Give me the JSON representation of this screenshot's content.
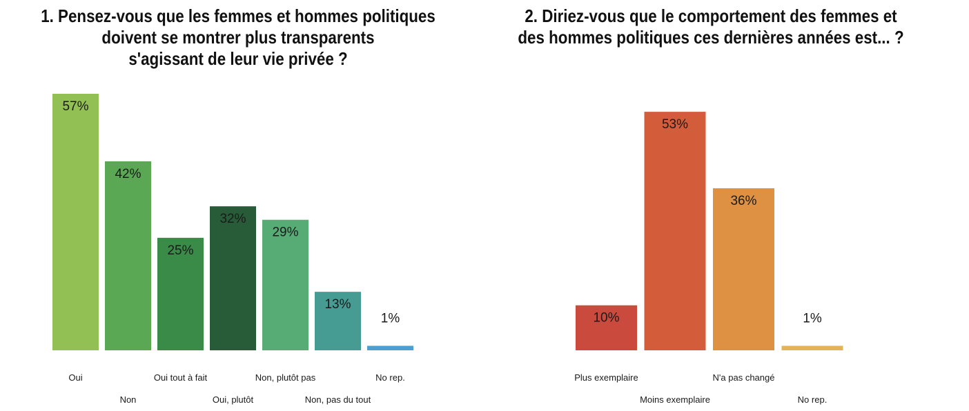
{
  "chart_data": [
    {
      "type": "bar",
      "title": "1. Pensez-vous que les femmes et hommes politiques\ndoivent se montrer plus transparents\ns'agissant de leur vie privée ?",
      "categories": [
        "Oui",
        "Non",
        "Oui tout à fait",
        "Oui, plutôt",
        "Non, plutôt pas",
        "Non, pas du tout",
        "No rep."
      ],
      "values": [
        57,
        42,
        25,
        32,
        29,
        13,
        1
      ],
      "data_labels": [
        "57%",
        "42%",
        "25%",
        "32%",
        "29%",
        "13%",
        "1%"
      ],
      "colors": [
        "#93c055",
        "#5ba854",
        "#3a8a48",
        "#285c38",
        "#57ab75",
        "#469b93",
        "#4c9fd0"
      ],
      "ylim": [
        0,
        57
      ],
      "grid": false,
      "xlabel": "",
      "ylabel": ""
    },
    {
      "type": "bar",
      "title": "2. Diriez-vous que le comportement des femmes et\ndes hommes politiques ces dernières années est... ?",
      "categories": [
        "Plus exemplaire",
        "Moins exemplaire",
        "N'a pas changé",
        "No rep."
      ],
      "values": [
        10,
        53,
        36,
        1
      ],
      "data_labels": [
        "10%",
        "53%",
        "36%",
        "1%"
      ],
      "colors": [
        "#cb4a3e",
        "#d35d3a",
        "#de9142",
        "#e6b257"
      ],
      "ylim": [
        0,
        57
      ],
      "grid": false,
      "xlabel": "",
      "ylabel": ""
    }
  ]
}
